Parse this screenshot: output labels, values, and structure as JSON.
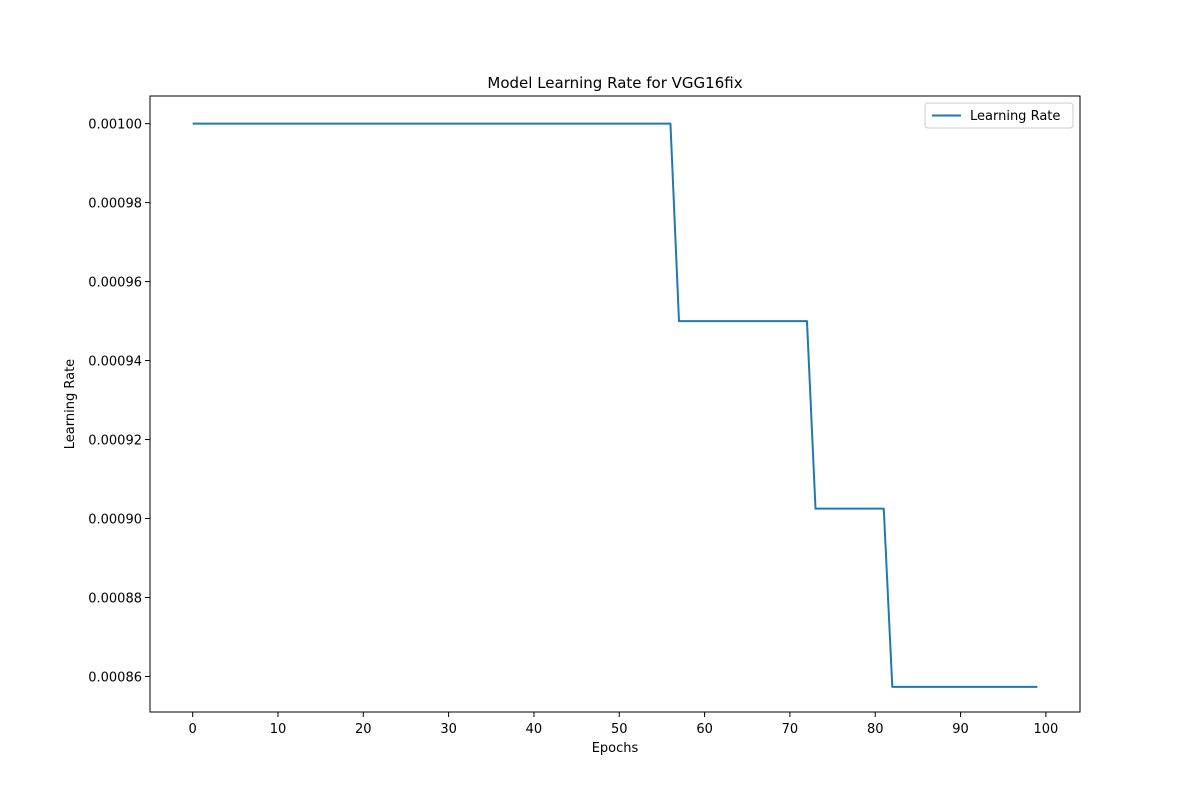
{
  "chart_data": {
    "type": "line",
    "title": "Model Learning Rate for VGG16fix",
    "xlabel": "Epochs",
    "ylabel": "Learning Rate",
    "xlim": [
      -5,
      104
    ],
    "ylim": [
      0.000851,
      0.001007
    ],
    "xticks": [
      0,
      10,
      20,
      30,
      40,
      50,
      60,
      70,
      80,
      90,
      100
    ],
    "xtick_labels": [
      "0",
      "10",
      "20",
      "30",
      "40",
      "50",
      "60",
      "70",
      "80",
      "90",
      "100"
    ],
    "yticks": [
      0.00086,
      0.00088,
      0.0009,
      0.00092,
      0.00094,
      0.00096,
      0.00098,
      0.001
    ],
    "ytick_labels": [
      "0.00086",
      "0.00088",
      "0.00090",
      "0.00092",
      "0.00094",
      "0.00096",
      "0.00098",
      "0.00100"
    ],
    "grid": false,
    "legend_position": "top-right",
    "series": [
      {
        "name": "Learning Rate",
        "color": "#1f77b4",
        "x": [
          0,
          56,
          57,
          72,
          73,
          81,
          82,
          99
        ],
        "y": [
          0.001,
          0.001,
          0.00095,
          0.00095,
          0.0009025,
          0.0009025,
          0.000857375,
          0.000857375
        ]
      }
    ]
  }
}
